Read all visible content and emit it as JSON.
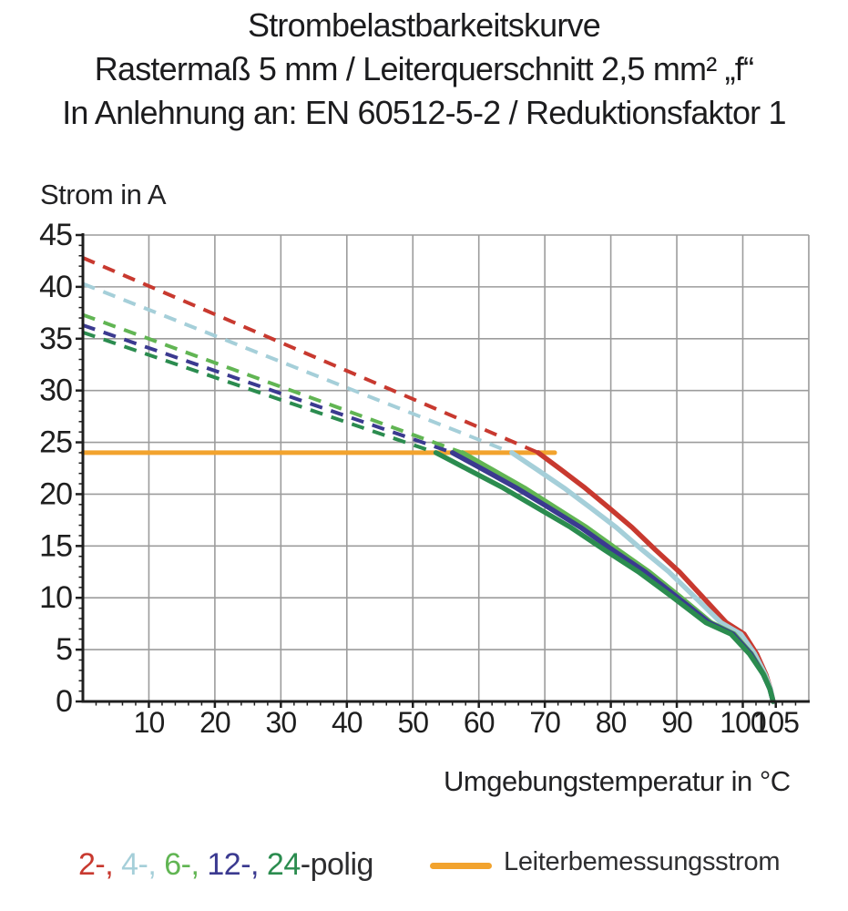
{
  "title": {
    "line1": "Strombelastbarkeitskurve",
    "line2": "Rastermaß 5 mm / Leiterquerschnitt 2,5 mm² „f“",
    "line3": "In Anlehnung an: EN 60512-5-2 / Reduktionsfaktor 1"
  },
  "chart_data": {
    "type": "line",
    "title": "Strombelastbarkeitskurve",
    "xlabel": "Umgebungstemperatur in °C",
    "ylabel": "Strom in A",
    "xlim": [
      0,
      110
    ],
    "ylim": [
      0,
      45
    ],
    "grid": true,
    "x_major_ticks": [
      10,
      20,
      30,
      40,
      50,
      60,
      70,
      80,
      90,
      100,
      105
    ],
    "y_major_ticks": [
      0,
      5,
      10,
      15,
      20,
      25,
      30,
      35,
      40,
      45
    ],
    "x_gridlines": [
      10,
      20,
      30,
      40,
      50,
      60,
      70,
      80,
      90,
      100,
      110
    ],
    "y_gridlines": [
      5,
      10,
      15,
      20,
      25,
      30,
      35,
      40,
      45
    ],
    "axis_color": "#1e1e1e",
    "grid_color": "#9c9c9c",
    "rated_current_line": {
      "label": "Leiterbemessungsstrom",
      "value": 24,
      "x_start": 0,
      "x_end": 71.5,
      "color": "#F2A32E"
    },
    "series": [
      {
        "name": "2-polig",
        "color": "#C8392F",
        "dashed": [
          [
            0,
            42.8
          ],
          [
            69,
            24
          ]
        ],
        "solid": [
          [
            69,
            24
          ],
          [
            72.6,
            22.3
          ],
          [
            76.1,
            20.6
          ],
          [
            79.7,
            18.7
          ],
          [
            83.2,
            16.8
          ],
          [
            86.8,
            14.6
          ],
          [
            90.4,
            12.5
          ],
          [
            93.9,
            10.1
          ],
          [
            97.5,
            7.6
          ],
          [
            100.2,
            6.5
          ],
          [
            102.1,
            4.6
          ],
          [
            103.5,
            2.6
          ],
          [
            104.2,
            1.2
          ],
          [
            104.6,
            0
          ]
        ]
      },
      {
        "name": "4-polig",
        "color": "#A5CFD9",
        "dashed": [
          [
            0,
            40.3
          ],
          [
            65,
            24
          ]
        ],
        "solid": [
          [
            65,
            24
          ],
          [
            69,
            22.3
          ],
          [
            72.9,
            20.6
          ],
          [
            76.9,
            18.7
          ],
          [
            80.8,
            16.8
          ],
          [
            84.8,
            14.6
          ],
          [
            88.8,
            12.5
          ],
          [
            92.7,
            10.1
          ],
          [
            96.7,
            7.6
          ],
          [
            99.7,
            6.5
          ],
          [
            101.8,
            4.6
          ],
          [
            103.4,
            2.6
          ],
          [
            104.2,
            1.2
          ],
          [
            104.6,
            0
          ]
        ]
      },
      {
        "name": "6-polig",
        "color": "#61B553",
        "dashed": [
          [
            0,
            37.3
          ],
          [
            57.5,
            24
          ]
        ],
        "solid": [
          [
            57.5,
            24
          ],
          [
            62.2,
            22.3
          ],
          [
            66.9,
            20.6
          ],
          [
            71.6,
            18.7
          ],
          [
            76.3,
            16.8
          ],
          [
            81.1,
            14.6
          ],
          [
            85.8,
            12.5
          ],
          [
            90.5,
            10.1
          ],
          [
            95.2,
            7.6
          ],
          [
            98.7,
            6.5
          ],
          [
            101.3,
            4.6
          ],
          [
            103.2,
            2.6
          ],
          [
            104.1,
            1.2
          ],
          [
            104.6,
            0
          ]
        ]
      },
      {
        "name": "12-polig",
        "color": "#3B3A90",
        "dashed": [
          [
            0,
            36.3
          ],
          [
            56,
            24
          ]
        ],
        "solid": [
          [
            56,
            24
          ],
          [
            60.9,
            22.3
          ],
          [
            65.7,
            20.6
          ],
          [
            70.6,
            18.7
          ],
          [
            75.4,
            16.8
          ],
          [
            80.3,
            14.6
          ],
          [
            85.2,
            12.5
          ],
          [
            90,
            10.1
          ],
          [
            94.9,
            7.6
          ],
          [
            98.5,
            6.5
          ],
          [
            101.2,
            4.6
          ],
          [
            103.1,
            2.6
          ],
          [
            104.1,
            1.2
          ],
          [
            104.6,
            0
          ]
        ]
      },
      {
        "name": "24-polig",
        "color": "#2B8C4F",
        "dashed": [
          [
            0,
            35.6
          ],
          [
            53.5,
            24
          ]
        ],
        "solid": [
          [
            53.5,
            24
          ],
          [
            58.6,
            22.3
          ],
          [
            63.7,
            20.6
          ],
          [
            68.8,
            18.7
          ],
          [
            73.9,
            16.8
          ],
          [
            79.1,
            14.6
          ],
          [
            84.2,
            12.5
          ],
          [
            89.3,
            10.1
          ],
          [
            94.4,
            7.6
          ],
          [
            98.2,
            6.5
          ],
          [
            101,
            4.6
          ],
          [
            103.1,
            2.6
          ],
          [
            104.1,
            1.2
          ],
          [
            104.6,
            0
          ]
        ]
      }
    ]
  },
  "axes_titles": {
    "y": "Strom in A",
    "x": "Umgebungstemperatur in °C"
  },
  "legend": {
    "poles": [
      {
        "text": "2-,",
        "color": "#C8392F"
      },
      {
        "text": " 4-,",
        "color": "#A5CFD9"
      },
      {
        "text": " 6-,",
        "color": "#61B553"
      },
      {
        "text": " 12-,",
        "color": "#3B3A90"
      },
      {
        "text": " 24",
        "color": "#2B8C4F"
      },
      {
        "text": "-polig",
        "color": "#2E2E30"
      }
    ],
    "rated": {
      "label": "Leiterbemessungsstrom",
      "color": "#F2A32E"
    }
  }
}
